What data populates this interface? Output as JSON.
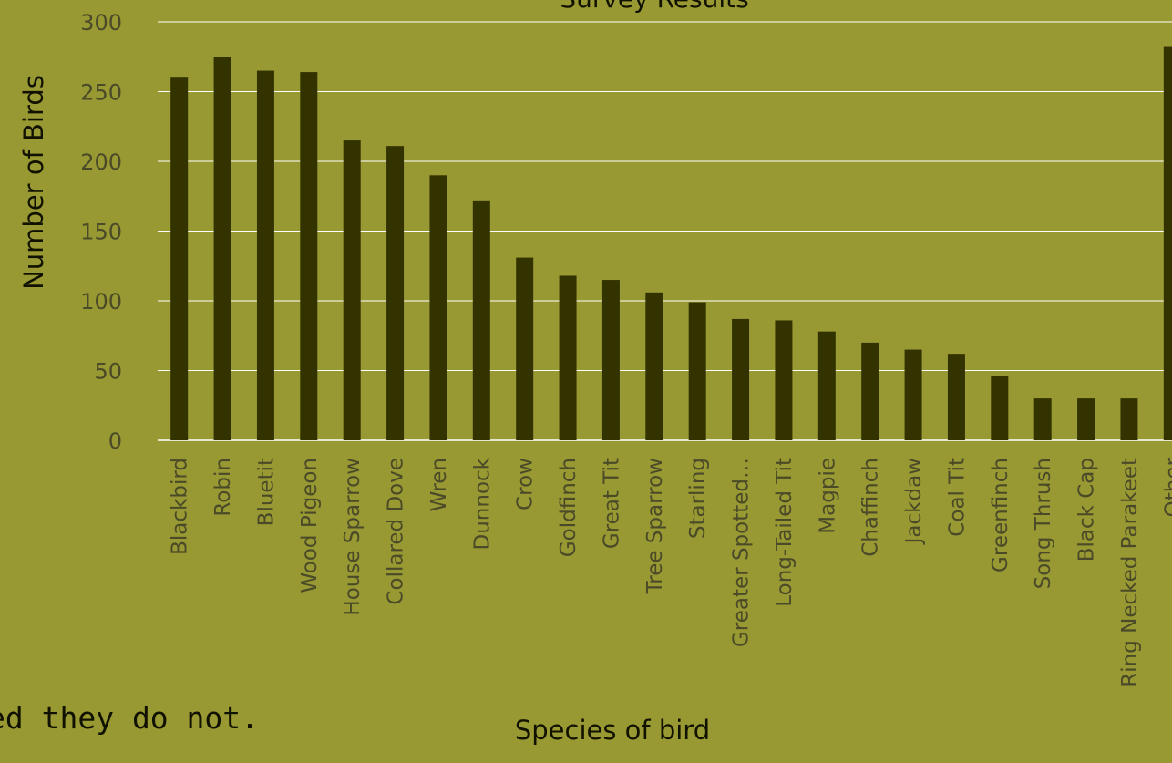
{
  "caption": "ed they do not.",
  "colors": {
    "background": "#999933",
    "bar": "#333300",
    "gridline": "#ffffff"
  },
  "chart_data": {
    "type": "bar",
    "title": "Survey Results",
    "xlabel": "Species of bird",
    "ylabel": "Number of Birds",
    "ylim": [
      0,
      300
    ],
    "yticks": [
      0,
      50,
      100,
      150,
      200,
      250,
      300
    ],
    "grid": true,
    "categories": [
      "Blackbird",
      "Robin",
      "Bluetit",
      "Wood Pigeon",
      "House Sparrow",
      "Collared Dove",
      "Wren",
      "Dunnock",
      "Crow",
      "Goldfinch",
      "Great Tit",
      "Tree Sparrow",
      "Starling",
      "Greater Spotted…",
      "Long-Tailed Tit",
      "Magpie",
      "Chaffinch",
      "Jackdaw",
      "Coal Tit",
      "Greenfinch",
      "Song Thrush",
      "Black Cap",
      "Ring Necked Parakeet",
      "Other"
    ],
    "values": [
      260,
      275,
      265,
      264,
      215,
      211,
      190,
      172,
      131,
      118,
      115,
      106,
      99,
      87,
      86,
      78,
      70,
      65,
      62,
      46,
      30,
      30,
      30,
      282
    ]
  }
}
